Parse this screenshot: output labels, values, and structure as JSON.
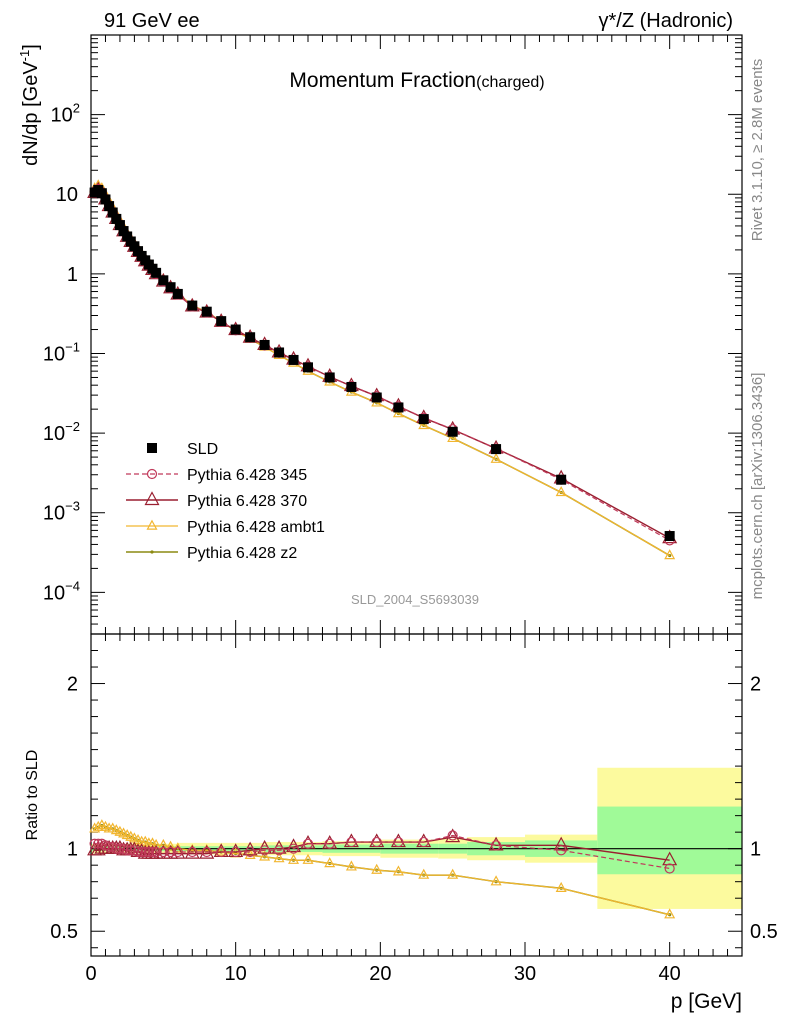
{
  "header": {
    "left": "91 GeV ee",
    "right": "γ*/Z (Hadronic)"
  },
  "side_text": {
    "version": "Rivet 3.1.10, ≥ 2.8M events",
    "source": "mcplots.cern.ch [arXiv:1306.3436]"
  },
  "watermark": "SLD_2004_S5693039",
  "chart_data": [
    {
      "panel": "main",
      "type": "line",
      "title": "Momentum Fraction",
      "title_suffix": "(charged)",
      "ylabel": "dN/dp [GeV",
      "ylabel_sup": "-1",
      "ylabel_close": "]",
      "xlabel": "",
      "yscale": "log",
      "xlim": [
        0,
        45
      ],
      "ylim": [
        3e-05,
        1000
      ],
      "grid": false,
      "legend_position": "bottom-left",
      "yticks": [
        {
          "v": 0.0001,
          "m": "10",
          "e": "−4"
        },
        {
          "v": 0.001,
          "m": "10",
          "e": "−3"
        },
        {
          "v": 0.01,
          "m": "10",
          "e": "−2"
        },
        {
          "v": 0.1,
          "m": "10",
          "e": "−1"
        },
        {
          "v": 1,
          "m": "1",
          "e": ""
        },
        {
          "v": 10,
          "m": "10",
          "e": ""
        },
        {
          "v": 100,
          "m": "10",
          "e": "2"
        }
      ],
      "x": [
        0.25,
        0.5,
        0.75,
        1.0,
        1.25,
        1.5,
        1.75,
        2.0,
        2.25,
        2.5,
        2.75,
        3.0,
        3.25,
        3.5,
        3.75,
        4.0,
        4.25,
        4.5,
        5.0,
        5.5,
        6.0,
        7.0,
        8.0,
        9.0,
        10.0,
        11.0,
        12.0,
        13.0,
        14.0,
        15.0,
        16.5,
        18.0,
        19.75,
        21.25,
        23.0,
        25.0,
        28.0,
        32.5,
        40.0
      ],
      "series": [
        {
          "name": "SLD",
          "style": "data",
          "values": [
            10.5,
            11.3,
            10.3,
            8.6,
            7.1,
            5.9,
            4.9,
            4.1,
            3.45,
            2.95,
            2.55,
            2.22,
            1.93,
            1.68,
            1.48,
            1.31,
            1.16,
            1.03,
            0.83,
            0.68,
            0.56,
            0.4,
            0.335,
            0.255,
            0.2,
            0.16,
            0.128,
            0.103,
            0.083,
            0.067,
            0.05,
            0.038,
            0.028,
            0.021,
            0.015,
            0.0104,
            0.0063,
            0.0026,
            0.00051
          ]
        },
        {
          "name": "Pythia 6.428 345",
          "style": "345",
          "values": [
            10.8,
            11.6,
            10.6,
            8.8,
            7.2,
            6.0,
            5.0,
            4.15,
            3.47,
            2.96,
            2.55,
            2.21,
            1.91,
            1.65,
            1.45,
            1.28,
            1.13,
            1.0,
            0.81,
            0.665,
            0.55,
            0.39,
            0.327,
            0.249,
            0.196,
            0.157,
            0.126,
            0.102,
            0.083,
            0.069,
            0.051,
            0.039,
            0.0292,
            0.0218,
            0.0156,
            0.0112,
            0.0064,
            0.0026,
            0.00045
          ]
        },
        {
          "name": "Pythia 6.428 370",
          "style": "370",
          "values": [
            10.4,
            11.2,
            10.3,
            8.6,
            7.1,
            5.9,
            4.9,
            4.1,
            3.43,
            2.92,
            2.52,
            2.19,
            1.89,
            1.64,
            1.44,
            1.27,
            1.12,
            0.99,
            0.8,
            0.66,
            0.55,
            0.39,
            0.327,
            0.25,
            0.197,
            0.158,
            0.128,
            0.103,
            0.084,
            0.069,
            0.051,
            0.039,
            0.0291,
            0.0217,
            0.0155,
            0.0111,
            0.0064,
            0.0027,
            0.00048
          ]
        },
        {
          "name": "Pythia 6.428 ambt1",
          "style": "ambt1",
          "values": [
            11.8,
            12.8,
            11.8,
            9.8,
            8.1,
            6.7,
            5.5,
            4.6,
            3.8,
            3.2,
            2.75,
            2.38,
            2.05,
            1.77,
            1.55,
            1.37,
            1.21,
            1.07,
            0.85,
            0.69,
            0.57,
            0.4,
            0.334,
            0.251,
            0.193,
            0.152,
            0.121,
            0.095,
            0.076,
            0.06,
            0.044,
            0.0328,
            0.024,
            0.0176,
            0.0125,
            0.0086,
            0.0047,
            0.0018,
            0.00029
          ]
        },
        {
          "name": "Pythia 6.428 z2",
          "style": "z2",
          "values": [
            11.8,
            12.8,
            11.8,
            9.8,
            8.1,
            6.7,
            5.5,
            4.6,
            3.8,
            3.2,
            2.75,
            2.38,
            2.05,
            1.77,
            1.55,
            1.37,
            1.21,
            1.07,
            0.85,
            0.69,
            0.57,
            0.4,
            0.334,
            0.251,
            0.193,
            0.152,
            0.121,
            0.095,
            0.076,
            0.06,
            0.044,
            0.0328,
            0.024,
            0.0176,
            0.0125,
            0.0086,
            0.0047,
            0.0018,
            0.00029
          ]
        }
      ]
    },
    {
      "panel": "ratio",
      "type": "line",
      "ylabel": "Ratio to SLD",
      "xlabel": "p [GeV]",
      "xlim": [
        0,
        45
      ],
      "ylim": [
        0.35,
        2.3
      ],
      "yticks": [
        0.5,
        1,
        2
      ],
      "xticks": [
        0,
        10,
        20,
        30,
        40
      ],
      "reference": 1,
      "bands": [
        {
          "x0": 0,
          "x1": 6,
          "inner": [
            0.985,
            1.015
          ],
          "outer": [
            0.97,
            1.03
          ]
        },
        {
          "x0": 6,
          "x1": 12,
          "inner": [
            0.985,
            1.015
          ],
          "outer": [
            0.965,
            1.035
          ]
        },
        {
          "x0": 12,
          "x1": 16,
          "inner": [
            0.98,
            1.02
          ],
          "outer": [
            0.96,
            1.04
          ]
        },
        {
          "x0": 16,
          "x1": 20,
          "inner": [
            0.975,
            1.025
          ],
          "outer": [
            0.955,
            1.045
          ]
        },
        {
          "x0": 20,
          "x1": 24,
          "inner": [
            0.97,
            1.03
          ],
          "outer": [
            0.945,
            1.055
          ]
        },
        {
          "x0": 24,
          "x1": 26,
          "inner": [
            0.97,
            1.03
          ],
          "outer": [
            0.94,
            1.06
          ]
        },
        {
          "x0": 26,
          "x1": 30,
          "inner": [
            0.96,
            1.04
          ],
          "outer": [
            0.93,
            1.07
          ]
        },
        {
          "x0": 30,
          "x1": 35,
          "inner": [
            0.95,
            1.05
          ],
          "outer": [
            0.915,
            1.085
          ]
        },
        {
          "x0": 35,
          "x1": 45,
          "inner": [
            0.845,
            1.255
          ],
          "outer": [
            0.635,
            1.49
          ]
        }
      ],
      "x": [
        0.25,
        0.5,
        0.75,
        1.0,
        1.25,
        1.5,
        1.75,
        2.0,
        2.25,
        2.5,
        2.75,
        3.0,
        3.25,
        3.5,
        3.75,
        4.0,
        4.25,
        4.5,
        5.0,
        5.5,
        6.0,
        7.0,
        8.0,
        9.0,
        10.0,
        11.0,
        12.0,
        13.0,
        14.0,
        15.0,
        16.5,
        18.0,
        19.75,
        21.25,
        23.0,
        25.0,
        28.0,
        32.5,
        40.0
      ],
      "series": [
        {
          "name": "Pythia 6.428 345",
          "style": "345",
          "values": [
            1.03,
            1.03,
            1.03,
            1.02,
            1.01,
            1.01,
            1.0,
            1.0,
            1.0,
            0.99,
            0.99,
            0.99,
            0.98,
            0.98,
            0.98,
            0.98,
            0.98,
            0.98,
            0.98,
            0.98,
            0.98,
            0.98,
            0.98,
            0.98,
            0.98,
            0.98,
            0.99,
            0.99,
            1.0,
            1.03,
            1.03,
            1.04,
            1.04,
            1.04,
            1.04,
            1.08,
            1.02,
            0.99,
            0.88
          ]
        },
        {
          "name": "Pythia 6.428 370",
          "style": "370",
          "values": [
            0.99,
            0.99,
            1.0,
            1.0,
            1.0,
            1.0,
            1.0,
            1.0,
            0.99,
            0.99,
            0.99,
            0.99,
            0.98,
            0.98,
            0.97,
            0.97,
            0.97,
            0.97,
            0.97,
            0.97,
            0.97,
            0.97,
            0.97,
            0.98,
            0.98,
            0.99,
            1.0,
            1.0,
            1.01,
            1.03,
            1.03,
            1.04,
            1.04,
            1.04,
            1.04,
            1.07,
            1.02,
            1.02,
            0.93
          ]
        },
        {
          "name": "Pythia 6.428 ambt1",
          "style": "ambt1",
          "values": [
            1.12,
            1.13,
            1.14,
            1.13,
            1.12,
            1.12,
            1.11,
            1.1,
            1.09,
            1.08,
            1.07,
            1.06,
            1.05,
            1.04,
            1.04,
            1.03,
            1.03,
            1.02,
            1.02,
            1.01,
            1.0,
            0.99,
            0.99,
            0.98,
            0.97,
            0.96,
            0.95,
            0.94,
            0.93,
            0.93,
            0.91,
            0.89,
            0.87,
            0.86,
            0.84,
            0.84,
            0.8,
            0.76,
            0.6
          ]
        },
        {
          "name": "Pythia 6.428 z2",
          "style": "z2",
          "values": [
            1.12,
            1.13,
            1.14,
            1.13,
            1.12,
            1.12,
            1.11,
            1.1,
            1.09,
            1.08,
            1.07,
            1.06,
            1.05,
            1.04,
            1.04,
            1.03,
            1.03,
            1.02,
            1.02,
            1.01,
            1.0,
            0.99,
            0.99,
            0.98,
            0.97,
            0.96,
            0.95,
            0.94,
            0.93,
            0.93,
            0.91,
            0.89,
            0.87,
            0.86,
            0.84,
            0.84,
            0.8,
            0.76,
            0.6
          ]
        }
      ]
    }
  ],
  "colors": {
    "345": "#c0395a",
    "370": "#9a1f30",
    "ambt1": "#f2b630",
    "z2": "#8c8a12",
    "data": "#000000",
    "band_inner": "#a0fa98",
    "band_outer": "#fcfa9e"
  }
}
